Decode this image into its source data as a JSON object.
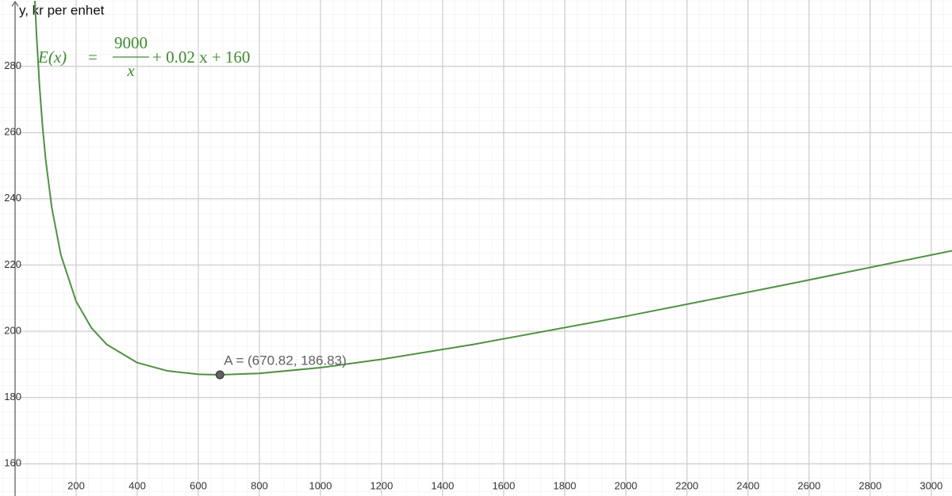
{
  "chart_data": {
    "type": "line",
    "y_label": "y, kr per enhet",
    "formula": {
      "lhs": "E(x)",
      "eq": "=",
      "numerator": "9000",
      "denominator": "x",
      "rest": "+ 0.02 x + 160",
      "color": "#3f8a2f"
    },
    "x": [
      65,
      70,
      80,
      90,
      100,
      120,
      150,
      200,
      250,
      300,
      400,
      500,
      600,
      670.82,
      800,
      1000,
      1200,
      1500,
      2000,
      2500,
      3068
    ],
    "series": [
      {
        "color": "#4f9142",
        "values": [
          299.76,
          289.97,
          274.1,
          261.8,
          252,
          237.4,
          223,
          209,
          201,
          196,
          190.5,
          188,
          187,
          186.83,
          187.25,
          189,
          191.5,
          196,
          204.5,
          213.6,
          224.29
        ]
      }
    ],
    "points": [
      {
        "label": "A = (670.82, 186.83)",
        "x": 670.82,
        "y": 186.83,
        "color": "#616161"
      }
    ],
    "xlim": [
      0,
      3068
    ],
    "ylim": [
      150.24,
      300
    ],
    "xticks": [
      200,
      400,
      600,
      800,
      1000,
      1200,
      1400,
      1600,
      1800,
      2000,
      2200,
      2400,
      2600,
      2800,
      3000
    ],
    "yticks": [
      160,
      180,
      200,
      220,
      240,
      260,
      280
    ],
    "grid": true
  }
}
